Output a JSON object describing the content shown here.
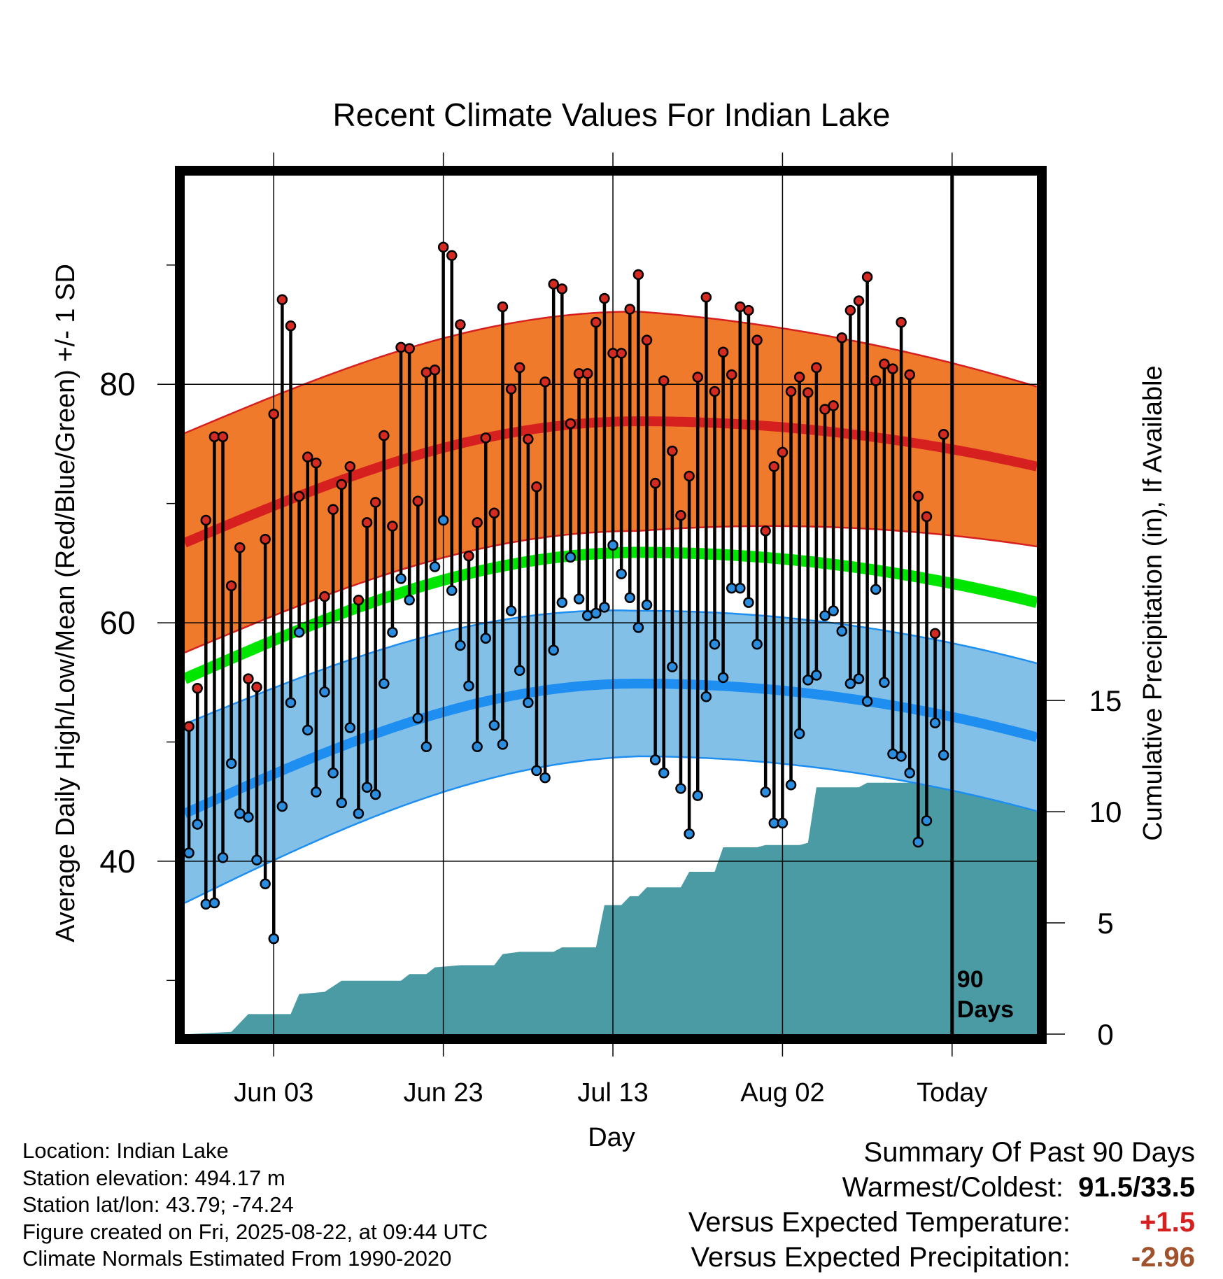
{
  "chart_data": {
    "type": "line",
    "title": "Recent Climate Values For Indian Lake",
    "xlabel": "Day",
    "ylabel": "Average Daily High/Low/Mean (Red/Blue/Green) +/- 1 SD",
    "y2label": "Cumulative Precipitation (in), If Available",
    "x_tick_labels": [
      "Jun 03",
      "Jun 23",
      "Jul 13",
      "Aug 02",
      "Today"
    ],
    "x_tick_days": [
      10,
      30,
      50,
      70,
      90
    ],
    "y_ticks": [
      40,
      60,
      80
    ],
    "y2_ticks": [
      0,
      5,
      10,
      15
    ],
    "ylim": [
      25.5,
      97.5
    ],
    "y2lim": [
      0,
      38.6
    ],
    "xlim": [
      -0.5,
      100
    ],
    "today_day": 90,
    "today_label": [
      "90",
      "Days"
    ],
    "normals": {
      "high_mean_start": 66.7,
      "high_mean_peak": 76.9,
      "high_mean_end": 73.1,
      "high_sd": 9.2,
      "high_sd_end": 6.7,
      "mean_start": 55.3,
      "mean_peak": 65.9,
      "mean_end": 61.7,
      "low_mean_start": 44.0,
      "low_mean_peak": 54.9,
      "low_mean_end": 50.4,
      "low_sd_start": 7.5,
      "low_sd_mid": 6.1,
      "low_sd_end": 6.2,
      "peak_day": 53
    },
    "daily_high": [
      51.3,
      54.5,
      68.6,
      75.6,
      75.6,
      63.1,
      66.3,
      55.3,
      54.6,
      67.0,
      77.5,
      87.1,
      84.9,
      70.6,
      73.9,
      73.4,
      62.2,
      69.5,
      71.6,
      73.1,
      61.9,
      68.4,
      70.1,
      75.7,
      68.1,
      83.1,
      83.0,
      70.2,
      81.0,
      81.2,
      91.5,
      90.8,
      85.0,
      65.6,
      68.4,
      75.5,
      69.2,
      86.5,
      79.6,
      81.4,
      75.4,
      71.4,
      80.2,
      88.4,
      88.0,
      76.7,
      80.9,
      80.9,
      85.2,
      87.2,
      82.6,
      82.6,
      86.3,
      89.2,
      83.7,
      71.7,
      80.3,
      74.4,
      69.0,
      72.3,
      80.6,
      87.3,
      79.4,
      82.7,
      80.8,
      86.5,
      86.2,
      83.7,
      67.7,
      73.1,
      74.3,
      79.4,
      80.6,
      79.3,
      81.4,
      77.9,
      78.2,
      83.9,
      86.2,
      87.0,
      89.0,
      80.3,
      81.7,
      81.3,
      85.2,
      80.8,
      70.6,
      68.9,
      59.1,
      75.8
    ],
    "daily_low": [
      40.7,
      43.1,
      36.4,
      36.5,
      40.3,
      48.2,
      44.0,
      43.7,
      40.1,
      38.1,
      33.5,
      44.6,
      53.3,
      59.2,
      51.0,
      45.8,
      54.2,
      47.4,
      44.9,
      51.2,
      44.0,
      46.2,
      45.6,
      54.9,
      59.2,
      63.7,
      61.9,
      52.0,
      49.6,
      64.7,
      68.6,
      62.7,
      58.1,
      54.7,
      49.6,
      58.7,
      51.4,
      49.8,
      61.0,
      56.0,
      53.3,
      47.6,
      47.0,
      57.7,
      61.7,
      65.5,
      62.0,
      60.6,
      60.8,
      61.3,
      66.5,
      64.1,
      62.1,
      59.6,
      61.5,
      48.5,
      47.4,
      56.3,
      46.1,
      42.3,
      45.5,
      53.8,
      58.2,
      55.4,
      62.9,
      62.9,
      61.7,
      58.2,
      45.8,
      43.2,
      43.2,
      46.4,
      50.7,
      55.2,
      55.6,
      60.6,
      61.0,
      59.3,
      54.9,
      55.3,
      53.4,
      62.8,
      55.0,
      49.0,
      48.8,
      47.4,
      41.6,
      43.4,
      51.6,
      48.9
    ],
    "precip_steps": [
      [
        0,
        0
      ],
      [
        5,
        0.1
      ],
      [
        7,
        0.9
      ],
      [
        12,
        0.9
      ],
      [
        13,
        1.8
      ],
      [
        16,
        1.9
      ],
      [
        18,
        2.4
      ],
      [
        25,
        2.4
      ],
      [
        26,
        2.7
      ],
      [
        28,
        2.7
      ],
      [
        29,
        3.0
      ],
      [
        32,
        3.1
      ],
      [
        36,
        3.1
      ],
      [
        37,
        3.6
      ],
      [
        39,
        3.7
      ],
      [
        43,
        3.7
      ],
      [
        44,
        3.9
      ],
      [
        48,
        3.9
      ],
      [
        49,
        5.8
      ],
      [
        51,
        5.8
      ],
      [
        52,
        6.2
      ],
      [
        53,
        6.2
      ],
      [
        54,
        6.6
      ],
      [
        58,
        6.6
      ],
      [
        59,
        7.3
      ],
      [
        62,
        7.3
      ],
      [
        63,
        8.4
      ],
      [
        67,
        8.4
      ],
      [
        68,
        8.5
      ],
      [
        71,
        8.5
      ],
      [
        72,
        8.5
      ],
      [
        73,
        8.6
      ],
      [
        74,
        11.1
      ],
      [
        75,
        11.1
      ],
      [
        79,
        11.1
      ],
      [
        80,
        11.3
      ],
      [
        86,
        11.3
      ],
      [
        87,
        11.5
      ],
      [
        100,
        11.5
      ]
    ]
  },
  "footer": {
    "location": "Location: Indian Lake",
    "elevation": "Station elevation: 494.17 m",
    "latlon": "Station lat/lon: 43.79; -74.24",
    "created": "Figure created on Fri, 2025-08-22, at 09:44 UTC",
    "normals_period": "Climate Normals Estimated From 1990-2020"
  },
  "summary": {
    "heading": "Summary Of Past 90 Days",
    "warmest_coldest_label": "Warmest/Coldest:",
    "warmest_coldest_value": "91.5/33.5",
    "temp_label": "Versus Expected Temperature:",
    "temp_value": "+1.5",
    "precip_label": "Versus Expected Precipitation:",
    "precip_value": "-2.96"
  },
  "colors": {
    "high_band": "#f07a2c",
    "high_line": "#d62020",
    "mean_line": "#00e600",
    "low_band": "#83c0e8",
    "low_line": "#1e8ff0",
    "precip": "#4a9ba4",
    "high_dot": "#d42a22",
    "low_dot": "#2a8de0",
    "temp_value": "#d62020",
    "precip_value": "#a0522d"
  }
}
